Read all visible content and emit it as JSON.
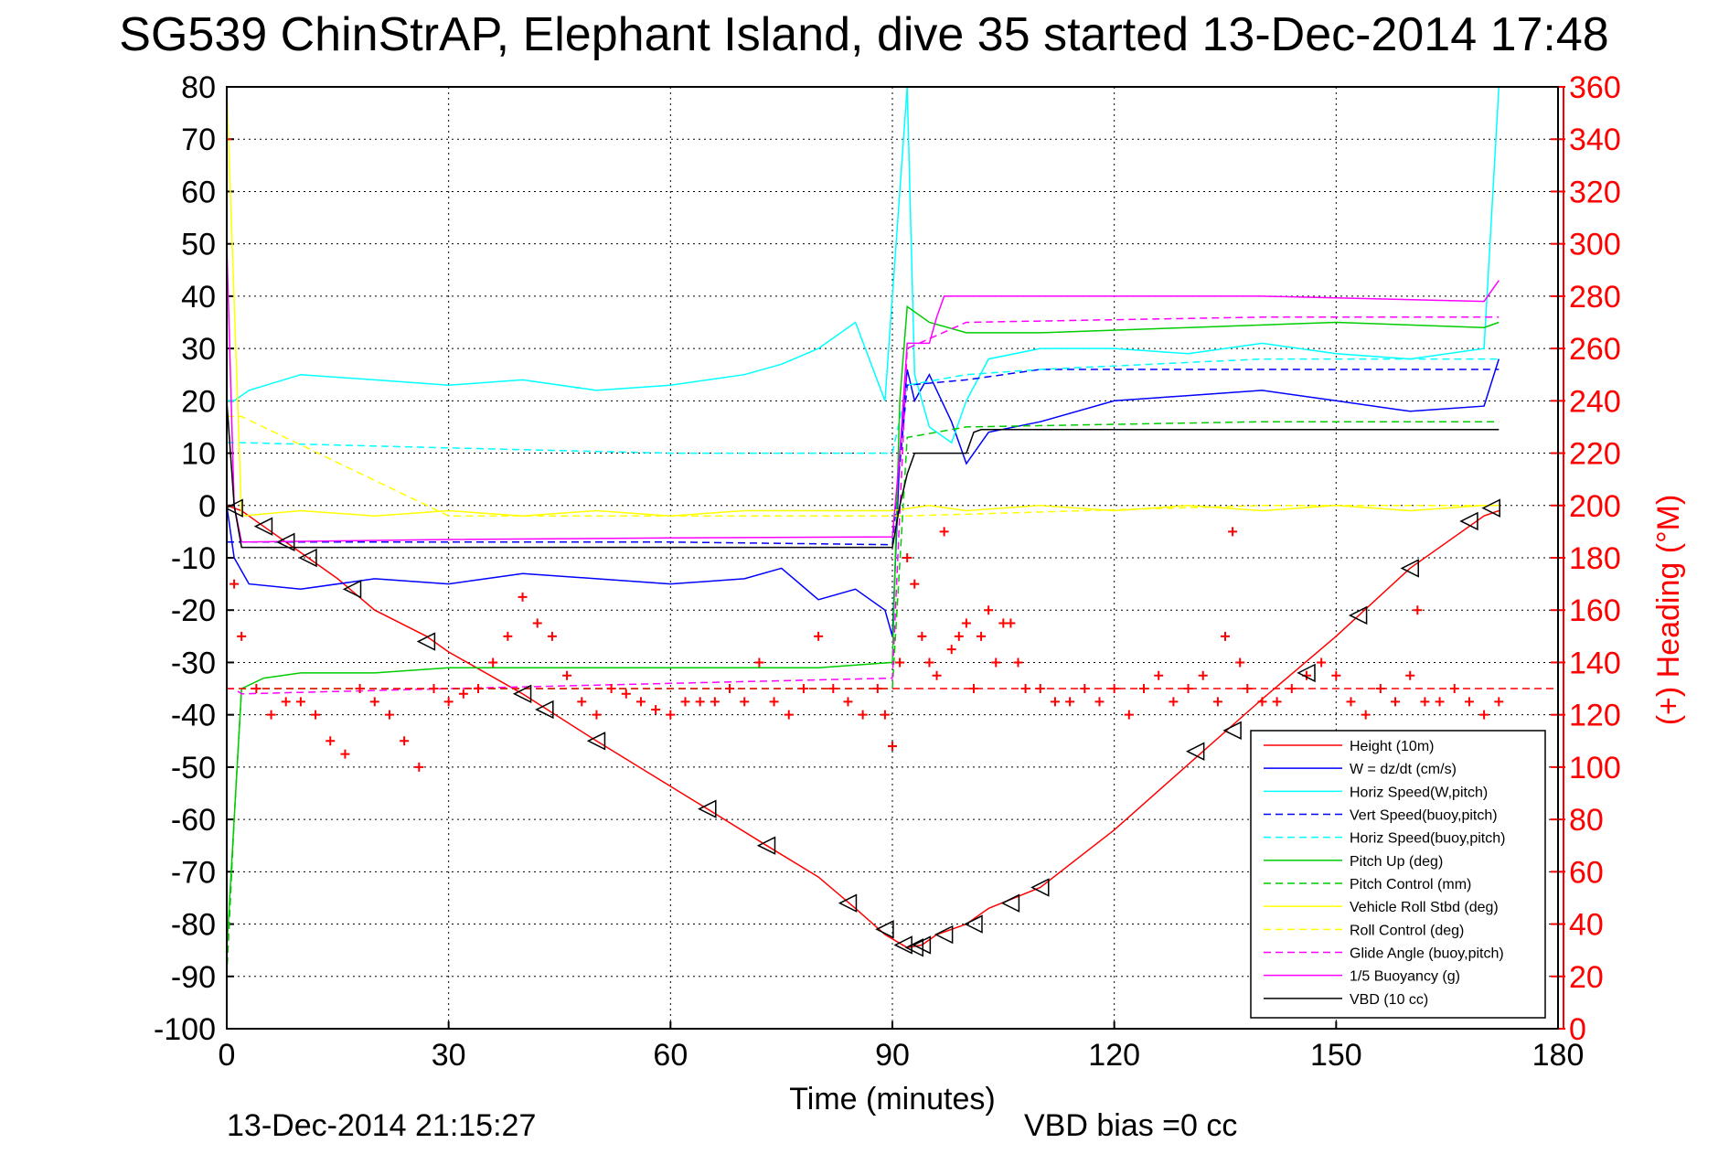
{
  "chart_data": {
    "type": "line",
    "title": "SG539 ChinStrAP, Elephant Island, dive 35 started 13-Dec-2014 17:48",
    "xlabel": "Time (minutes)",
    "ylabel_right": "(+) Heading (°M)",
    "xlim": [
      0,
      180
    ],
    "ylim": [
      -100,
      80
    ],
    "ylim_right": [
      0,
      360
    ],
    "x_ticks": [
      0,
      30,
      60,
      90,
      120,
      150,
      180
    ],
    "y_ticks": [
      -100,
      -90,
      -80,
      -70,
      -60,
      -50,
      -40,
      -30,
      -20,
      -10,
      0,
      10,
      20,
      30,
      40,
      50,
      60,
      70,
      80
    ],
    "y_right_ticks": [
      0,
      20,
      40,
      60,
      80,
      100,
      120,
      140,
      160,
      180,
      200,
      220,
      240,
      260,
      280,
      300,
      320,
      340,
      360
    ],
    "grid": true,
    "legend_position": "bottom-right",
    "footer_left": "13-Dec-2014 21:15:27",
    "footer_right": "VBD bias =0 cc",
    "series": [
      {
        "name": "Height (10m)",
        "color": "#ff0000",
        "style": "solid",
        "x": [
          0,
          2,
          5,
          10,
          15,
          20,
          27,
          30,
          40,
          50,
          65,
          73,
          80,
          85,
          89,
          92,
          94,
          96,
          100,
          103,
          110,
          120,
          132,
          140,
          150,
          160,
          170,
          172
        ],
        "y": [
          0,
          -1,
          -4,
          -9,
          -14,
          -20,
          -25,
          -28,
          -36,
          -45,
          -58,
          -65,
          -71,
          -77,
          -82,
          -84.5,
          -84,
          -82,
          -80,
          -77,
          -73,
          -62,
          -47,
          -37,
          -25,
          -12,
          -2,
          -1
        ]
      },
      {
        "name": "W = dz/dt (cm/s)",
        "color": "#0000ff",
        "style": "solid",
        "x": [
          0,
          1,
          3,
          10,
          20,
          30,
          40,
          50,
          60,
          70,
          75,
          80,
          85,
          89,
          90,
          91,
          92,
          93,
          95,
          98,
          100,
          103,
          110,
          120,
          130,
          140,
          150,
          160,
          170,
          172
        ],
        "y": [
          0,
          -10,
          -15,
          -16,
          -14,
          -15,
          -13,
          -14,
          -15,
          -14,
          -12,
          -18,
          -16,
          -20,
          -25,
          10,
          26,
          20,
          25,
          16,
          8,
          14,
          16,
          20,
          21,
          22,
          20,
          18,
          19,
          28
        ]
      },
      {
        "name": "Horiz Speed(W,pitch)",
        "color": "#00ffff",
        "style": "solid",
        "x": [
          0,
          1,
          3,
          10,
          20,
          30,
          40,
          50,
          60,
          70,
          75,
          80,
          85,
          89,
          90,
          91,
          92,
          93,
          95,
          98,
          100,
          103,
          110,
          120,
          130,
          140,
          150,
          160,
          170,
          172
        ],
        "y": [
          20,
          20,
          22,
          25,
          24,
          23,
          24,
          22,
          23,
          25,
          27,
          30,
          35,
          20,
          40,
          60,
          80,
          25,
          15,
          12,
          20,
          28,
          30,
          30,
          29,
          31,
          29,
          28,
          30,
          80
        ]
      },
      {
        "name": "Vert Speed(buoy,pitch)",
        "color": "#0000ff",
        "style": "dashed",
        "x": [
          0,
          2,
          30,
          60,
          90,
          92,
          100,
          110,
          140,
          170,
          172
        ],
        "y": [
          -7,
          -7,
          -7,
          -7,
          -7.5,
          23,
          24,
          26,
          26,
          26,
          26
        ]
      },
      {
        "name": "Horiz Speed(buoy,pitch)",
        "color": "#00ffff",
        "style": "dashed",
        "x": [
          0,
          2,
          30,
          60,
          90,
          92,
          100,
          110,
          140,
          170,
          172
        ],
        "y": [
          12,
          12,
          11,
          10,
          10,
          23,
          25,
          26,
          28,
          28,
          28
        ]
      },
      {
        "name": "Pitch Up (deg)",
        "color": "#00cc00",
        "style": "solid",
        "x": [
          0,
          1,
          2,
          5,
          10,
          20,
          30,
          40,
          60,
          80,
          90,
          91,
          92,
          95,
          100,
          110,
          130,
          150,
          170,
          172
        ],
        "y": [
          -85,
          -60,
          -35,
          -33,
          -32,
          -32,
          -31,
          -31,
          -31,
          -31,
          -30,
          20,
          38,
          35,
          33,
          33,
          34,
          35,
          34,
          35
        ]
      },
      {
        "name": "Pitch Control (mm)",
        "color": "#00cc00",
        "style": "dashed",
        "x": [
          0,
          1,
          2,
          10,
          60,
          90,
          92,
          100,
          140,
          172
        ],
        "y": [
          -90,
          -60,
          -35,
          -35,
          -35,
          -35,
          13,
          15,
          16,
          16
        ]
      },
      {
        "name": "Vehicle Roll Stbd (deg)",
        "color": "#ffff00",
        "style": "solid",
        "x": [
          0,
          2,
          10,
          20,
          30,
          40,
          50,
          60,
          70,
          80,
          90,
          95,
          100,
          110,
          120,
          130,
          140,
          150,
          160,
          170,
          172
        ],
        "y": [
          80,
          -2,
          -1,
          -2,
          -1,
          -2,
          -1,
          -2,
          -1,
          -1,
          -1,
          0,
          -1,
          0,
          -1,
          0,
          -1,
          0,
          -1,
          0,
          0
        ]
      },
      {
        "name": "Roll Control (deg)",
        "color": "#ffff00",
        "style": "dashed",
        "x": [
          0,
          2,
          30,
          60,
          90,
          92,
          140,
          172
        ],
        "y": [
          17,
          17,
          -2,
          -2,
          -2,
          -2,
          0,
          0
        ]
      },
      {
        "name": "Glide Angle (buoy,pitch)",
        "color": "#ff00ff",
        "style": "dashed",
        "x": [
          0,
          1,
          2,
          30,
          60,
          90,
          92,
          100,
          140,
          172
        ],
        "y": [
          -35,
          -35,
          -36,
          -35,
          -34,
          -33,
          30,
          35,
          36,
          36
        ]
      },
      {
        "name": "1/5 Buoyancy (g)",
        "color": "#ff00ff",
        "style": "solid",
        "x": [
          0,
          1,
          2,
          30,
          60,
          90,
          91,
          92,
          95,
          96,
          97,
          140,
          170,
          172
        ],
        "y": [
          50,
          0,
          -7,
          -6.5,
          -6.2,
          -6,
          10,
          31,
          31,
          36,
          40,
          40,
          39,
          43
        ]
      },
      {
        "name": "VBD (10 cc)",
        "color": "#000000",
        "style": "solid",
        "x": [
          0,
          1,
          2,
          30,
          60,
          90,
          91,
          92,
          93,
          100,
          101,
          102,
          172
        ],
        "y": [
          20,
          0,
          -8,
          -8,
          -8,
          -8,
          0,
          6,
          10,
          10,
          14,
          14.5,
          14.5
        ]
      }
    ],
    "heading": {
      "name": "Heading",
      "color": "#ff0000",
      "marker": "+",
      "x": [
        0,
        1,
        2,
        4,
        6,
        8,
        10,
        12,
        14,
        16,
        18,
        20,
        22,
        24,
        26,
        28,
        30,
        32,
        34,
        36,
        38,
        40,
        42,
        44,
        46,
        48,
        50,
        52,
        54,
        56,
        58,
        60,
        62,
        64,
        66,
        68,
        70,
        72,
        74,
        76,
        78,
        80,
        82,
        84,
        86,
        88,
        89,
        90,
        91,
        92,
        93,
        94,
        95,
        96,
        97,
        98,
        99,
        100,
        101,
        102,
        103,
        104,
        105,
        106,
        107,
        108,
        110,
        112,
        114,
        116,
        118,
        120,
        122,
        124,
        126,
        128,
        130,
        132,
        134,
        135,
        136,
        137,
        138,
        140,
        142,
        144,
        146,
        148,
        150,
        152,
        154,
        156,
        158,
        160,
        161,
        162,
        164,
        166,
        168,
        170,
        172
      ],
      "y": [
        340,
        170,
        150,
        130,
        120,
        125,
        125,
        120,
        110,
        105,
        130,
        125,
        120,
        110,
        100,
        130,
        125,
        128,
        130,
        140,
        150,
        165,
        155,
        150,
        135,
        125,
        120,
        130,
        128,
        125,
        122,
        120,
        125,
        125,
        125,
        130,
        125,
        140,
        125,
        120,
        130,
        150,
        130,
        125,
        120,
        130,
        120,
        108,
        140,
        180,
        170,
        150,
        140,
        135,
        190,
        145,
        150,
        155,
        130,
        150,
        160,
        140,
        155,
        155,
        140,
        130,
        130,
        125,
        125,
        130,
        125,
        130,
        120,
        130,
        135,
        125,
        130,
        135,
        125,
        150,
        190,
        140,
        130,
        125,
        125,
        130,
        135,
        140,
        135,
        125,
        120,
        130,
        125,
        135,
        160,
        125,
        125,
        130,
        125,
        120,
        125
      ]
    },
    "heading_reference": {
      "y": 130,
      "color": "#ff0000",
      "style": "dashed"
    },
    "depth_markers": {
      "x": [
        1,
        5,
        8,
        11,
        17,
        27,
        40,
        43,
        50,
        65,
        73,
        84,
        89,
        91.5,
        93,
        94,
        97,
        101,
        106,
        110,
        131,
        136,
        146,
        153,
        160,
        168,
        171
      ],
      "y": [
        -0.5,
        -4,
        -7,
        -10,
        -16,
        -26,
        -36,
        -39,
        -45,
        -58,
        -65,
        -76,
        -81,
        -84,
        -84.5,
        -84,
        -82,
        -80,
        -76,
        -73,
        -47,
        -43,
        -32,
        -21,
        -12,
        -3,
        -0.5
      ]
    }
  }
}
